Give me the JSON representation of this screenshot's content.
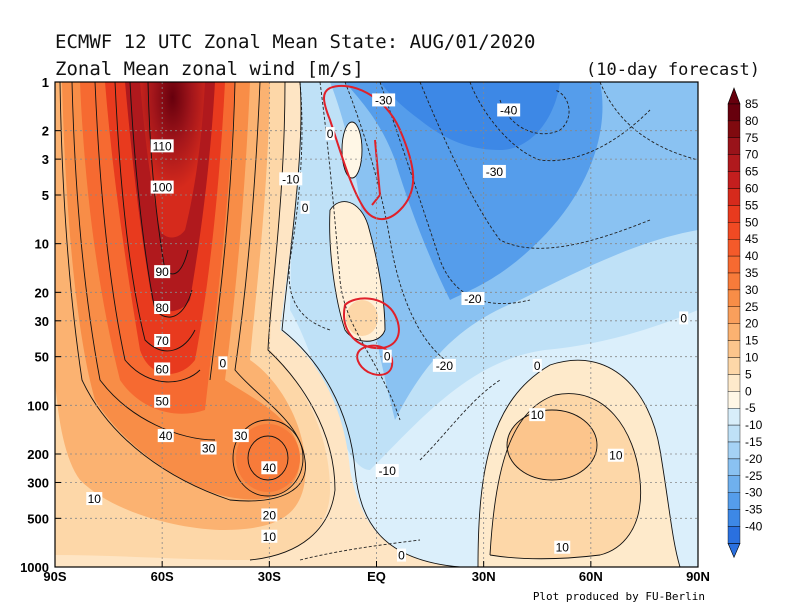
{
  "title_line1": "ECMWF 12 UTC Zonal Mean State: AUG/01/2020",
  "title_line2": "Zonal Mean zonal wind [m/s]",
  "forecast_label": "(10-day forecast)",
  "credit": "Plot produced by FU-Berlin",
  "chart_data": {
    "type": "contour",
    "x_ticks": [
      "90S",
      "60S",
      "30S",
      "EQ",
      "30N",
      "60N",
      "90N"
    ],
    "y_ticks": [
      "1",
      "2",
      "3",
      "5",
      "10",
      "20",
      "30",
      "50",
      "100",
      "200",
      "300",
      "500",
      "1000"
    ],
    "y_scale": "log (pressure, hPa)",
    "grid": true,
    "colorbar": {
      "labels": [
        "85",
        "80",
        "75",
        "70",
        "65",
        "60",
        "55",
        "50",
        "45",
        "40",
        "35",
        "30",
        "25",
        "20",
        "15",
        "10",
        "5",
        "0",
        "-5",
        "-10",
        "-15",
        "-20",
        "-25",
        "-30",
        "-35",
        "-40"
      ],
      "colors": [
        "#67000d",
        "#800a0f",
        "#99131a",
        "#b0191d",
        "#c41e1e",
        "#d62a1c",
        "#e83a1e",
        "#f04a23",
        "#f45a2a",
        "#f66a31",
        "#f77b3a",
        "#f88d47",
        "#f99f5c",
        "#fbb271",
        "#fcc58c",
        "#fdd7a8",
        "#feeacb",
        "#fff7e6",
        "#d8eefa",
        "#bfe1f7",
        "#a5d2f5",
        "#8ac2f2",
        "#6fb0ee",
        "#559deb",
        "#3d88e6",
        "#2a70df"
      ]
    },
    "contour_labels": [
      {
        "value": "110",
        "lat": -60,
        "p": 2.5
      },
      {
        "value": "100",
        "lat": -60,
        "p": 4.5
      },
      {
        "value": "90",
        "lat": -60,
        "p": 15
      },
      {
        "value": "80",
        "lat": -60,
        "p": 25
      },
      {
        "value": "70",
        "lat": -60,
        "p": 40
      },
      {
        "value": "60",
        "lat": -60,
        "p": 60
      },
      {
        "value": "50",
        "lat": -60,
        "p": 95
      },
      {
        "value": "40",
        "lat": -59,
        "p": 155
      },
      {
        "value": "30",
        "lat": -38,
        "p": 155
      },
      {
        "value": "30",
        "lat": -47,
        "p": 185
      },
      {
        "value": "40",
        "lat": -30,
        "p": 245
      },
      {
        "value": "20",
        "lat": -30,
        "p": 480
      },
      {
        "value": "10",
        "lat": -30,
        "p": 650
      },
      {
        "value": "10",
        "lat": -79,
        "p": 380
      },
      {
        "value": "0",
        "lat": -13,
        "p": 2.1
      },
      {
        "value": "0",
        "lat": -20,
        "p": 6
      },
      {
        "value": "0",
        "lat": -43,
        "p": 55
      },
      {
        "value": "0",
        "lat": 3,
        "p": 50
      },
      {
        "value": "0",
        "lat": 7,
        "p": 850
      },
      {
        "value": "0",
        "lat": 45,
        "p": 57
      },
      {
        "value": "-10",
        "lat": -24,
        "p": 4
      },
      {
        "value": "-30",
        "lat": 2,
        "p": 1.3
      },
      {
        "value": "-40",
        "lat": 37,
        "p": 1.5
      },
      {
        "value": "-30",
        "lat": 33,
        "p": 3.6
      },
      {
        "value": "-20",
        "lat": 27,
        "p": 22
      },
      {
        "value": "-20",
        "lat": 19,
        "p": 57
      },
      {
        "value": "-10",
        "lat": 3,
        "p": 255
      },
      {
        "value": "10",
        "lat": 45,
        "p": 115
      },
      {
        "value": "10",
        "lat": 67,
        "p": 205
      },
      {
        "value": "10",
        "lat": 52,
        "p": 760
      },
      {
        "value": "0",
        "lat": 86,
        "p": 29
      }
    ],
    "shaded_regions": [
      {
        "name": "sh-jet",
        "lat_range": [
          -90,
          -28
        ],
        "p_range": [
          1,
          1000
        ],
        "max": 110
      },
      {
        "name": "tropical-easterlies",
        "lat_range": [
          -30,
          90
        ],
        "p_range": [
          1,
          200
        ],
        "min": -40
      },
      {
        "name": "nh-lower-westerlies",
        "lat_range": [
          30,
          80
        ],
        "p_range": [
          80,
          1000
        ],
        "max": 10
      }
    ]
  }
}
